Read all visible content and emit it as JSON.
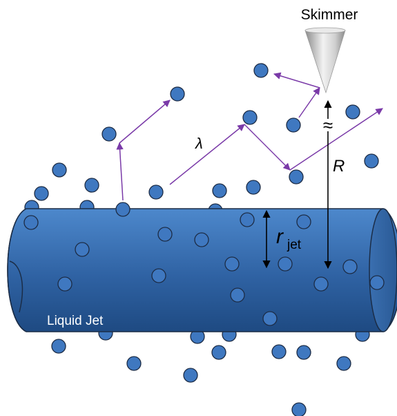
{
  "labels": {
    "skimmer": "Skimmer",
    "liquid_jet": "Liquid Jet",
    "mean_free_path": "λ",
    "distance": "R",
    "radius_main": "r",
    "radius_subscript": "jet",
    "break_mark": "≈"
  },
  "colors": {
    "molecule_fill": "#3f78c0",
    "molecule_stroke": "#1c2b44",
    "trajectory": "#7a3aa8",
    "jet_top": "#4d88cc",
    "jet_bottom": "#1e4a82",
    "jet_outline": "#1b2d47",
    "skimmer_light": "#f2f2f2",
    "skimmer_dark": "#8a8a8a",
    "dimension": "#000000",
    "jet_label": "#ffffff"
  }
}
